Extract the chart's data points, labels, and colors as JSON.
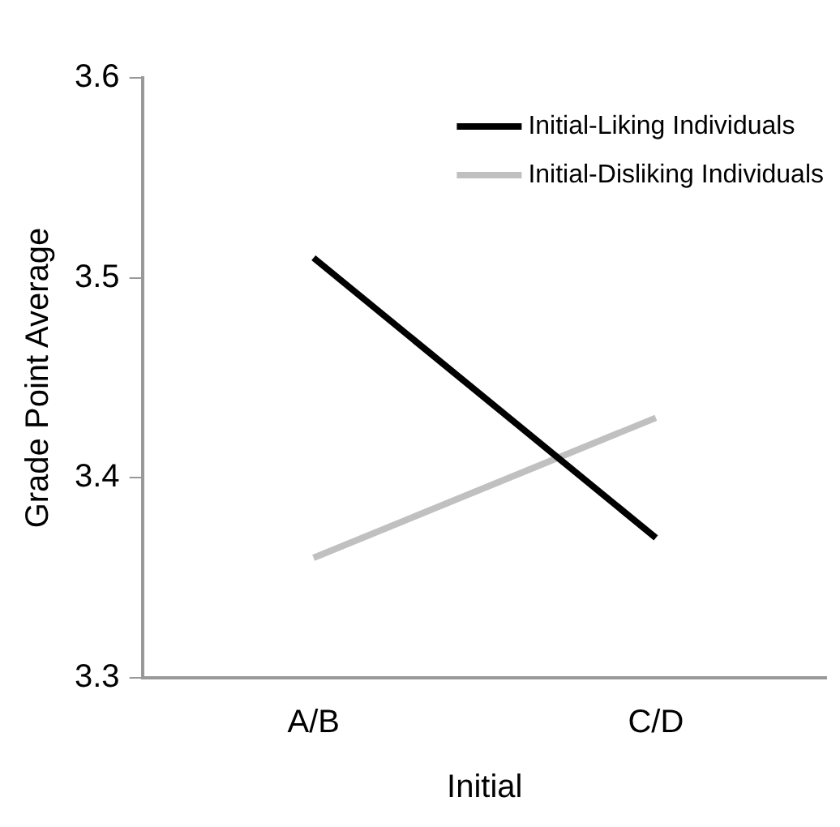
{
  "chart_data": {
    "type": "line",
    "xlabel": "Initial",
    "ylabel": "Grade Point Average",
    "categories": [
      "A/B",
      "C/D"
    ],
    "series": [
      {
        "name": "Initial-Liking Individuals",
        "color": "#000000",
        "values": [
          3.51,
          3.37
        ]
      },
      {
        "name": "Initial-Disliking Individuals",
        "color": "#c0c0c0",
        "values": [
          3.36,
          3.43
        ]
      }
    ],
    "ylim": [
      3.3,
      3.6
    ],
    "yticks": [
      {
        "value": 3.3,
        "label": "3.3"
      },
      {
        "value": 3.4,
        "label": "3.4"
      },
      {
        "value": 3.5,
        "label": "3.5"
      },
      {
        "value": 3.6,
        "label": "3.6"
      }
    ],
    "grid": false,
    "legend": "top right",
    "marker": "none",
    "line_style": "solid"
  }
}
